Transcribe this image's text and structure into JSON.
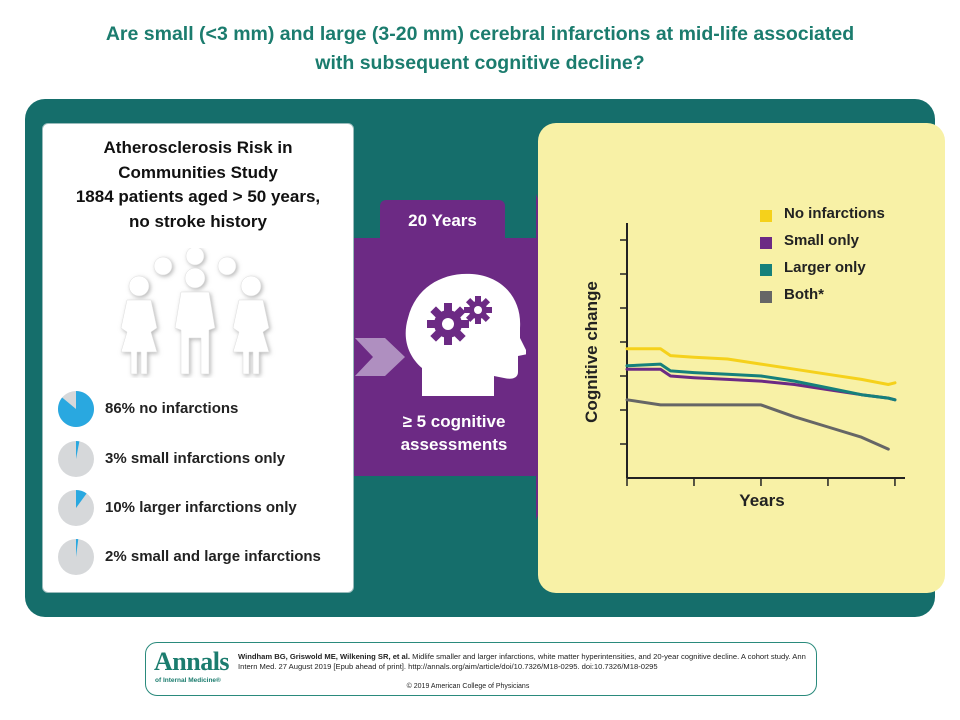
{
  "title": {
    "line1": "Are small (<3 mm) and large (3-20 mm) cerebral infarctions at mid-life associated",
    "line2": "with subsequent cognitive decline?"
  },
  "study": {
    "line1": "Atherosclerosis Risk in",
    "line2": "Communities Study",
    "line3": "1884 patients aged > 50 years,",
    "line4": "no stroke history"
  },
  "breakdown": [
    {
      "label": "86% no infarctions",
      "percent": 86
    },
    {
      "label": "3% small infarctions only",
      "percent": 3
    },
    {
      "label": "10% larger infarctions only",
      "percent": 10
    },
    {
      "label": "2% small and large infarctions",
      "percent": 2
    }
  ],
  "followup": {
    "duration": "20 Years",
    "assess_line1": "≥ 5 cognitive",
    "assess_line2": "assessments"
  },
  "colors": {
    "teal": "#156e6b",
    "purple": "#6c2a84",
    "yellow_bg": "#f8f1a6",
    "pie_blue": "#29a8e0",
    "pie_gray": "#d6d8da",
    "title_teal": "#1b7c6e"
  },
  "icons": [
    "people-icon",
    "head-gears-icon",
    "arrow-icon"
  ],
  "chart_data": {
    "type": "line",
    "xlabel": "Years",
    "ylabel": "Cognitive change",
    "x": [
      0,
      1,
      1.3,
      2,
      3,
      4,
      5,
      6,
      7,
      7.8,
      8
    ],
    "xlim": [
      0,
      8.3
    ],
    "ylim": [
      0,
      7.5
    ],
    "grid": false,
    "legend_position": "top-right",
    "series": [
      {
        "name": "No infarctions",
        "color": "#f5d11b",
        "values": [
          3.8,
          3.8,
          3.6,
          3.55,
          3.5,
          3.35,
          3.2,
          3.05,
          2.9,
          2.75,
          2.8
        ]
      },
      {
        "name": "Small only",
        "color": "#6c2a84",
        "values": [
          3.2,
          3.2,
          3.0,
          2.95,
          2.9,
          2.85,
          2.75,
          2.6,
          2.45,
          2.35,
          2.3
        ]
      },
      {
        "name": "Larger only",
        "color": "#16807b",
        "values": [
          3.3,
          3.35,
          3.15,
          3.1,
          3.05,
          3.0,
          2.85,
          2.65,
          2.45,
          2.35,
          2.3
        ]
      },
      {
        "name": "Both*",
        "color": "#666666",
        "values": [
          2.3,
          2.15,
          2.15,
          2.15,
          2.15,
          2.15,
          1.8,
          1.5,
          1.2,
          0.85,
          null
        ]
      }
    ]
  },
  "citation": {
    "logo_big": "Annals",
    "logo_small": "of Internal Medicine®",
    "authors": "Windham BG, Griswold ME, Wilkening SR, et al.",
    "text": " Midlife smaller and larger infarctions, white matter hyperintensities, and 20-year cognitive decline. A cohort study. Ann Intern Med. 27 August 2019 [Epub ahead of print]. http://annals.org/aim/article/doi/10.7326/M18-0295. doi:10.7326/M18-0295",
    "copyright": "© 2019 American College of Physicians"
  }
}
